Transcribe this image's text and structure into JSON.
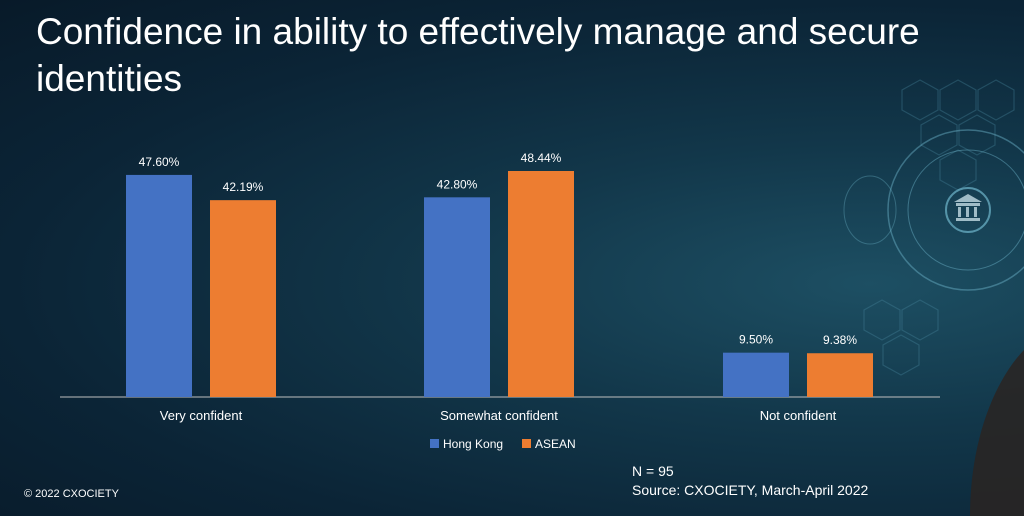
{
  "title": "Confidence in ability to effectively manage and secure identities",
  "note": {
    "n": "N = 95",
    "source": "Source: CXOCIETY, March-April 2022"
  },
  "copyright": "© 2022 CXOCIETY",
  "colors": {
    "hong_kong": "#4472c4",
    "asean": "#ed7d31",
    "axis": "#bfbfbf"
  },
  "chart_data": {
    "type": "bar",
    "categories": [
      "Very confident",
      "Somewhat confident",
      "Not confident"
    ],
    "series": [
      {
        "name": "Hong Kong",
        "values": [
          47.6,
          42.8,
          9.5
        ],
        "labels": [
          "47.60%",
          "42.80%",
          "9.50%"
        ]
      },
      {
        "name": "ASEAN",
        "values": [
          42.19,
          48.44,
          9.38
        ],
        "labels": [
          "42.19%",
          "48.44%",
          "9.38%"
        ]
      }
    ],
    "ylim": [
      0,
      50
    ],
    "legend": "bottom",
    "grid": false
  }
}
